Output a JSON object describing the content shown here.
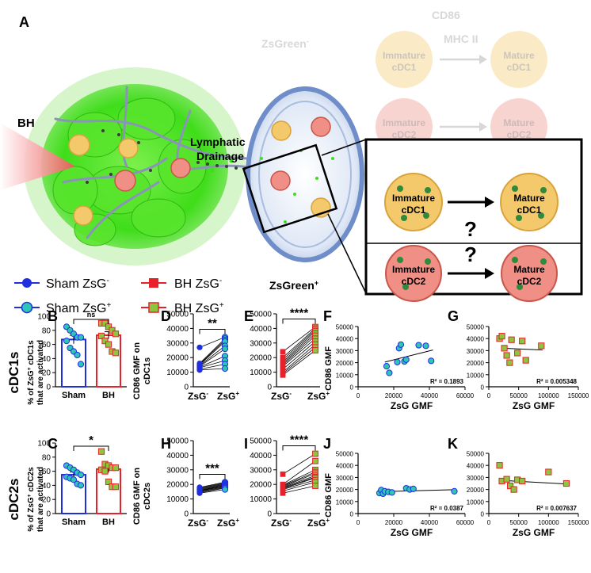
{
  "panel_labels": {
    "A": "A",
    "B": "B",
    "C": "C",
    "D": "D",
    "E": "E",
    "F": "F",
    "G": "G",
    "H": "H",
    "I": "I",
    "J": "J",
    "K": "K"
  },
  "schematic": {
    "bh": "BH",
    "lymphatic_1": "Lymphatic",
    "lymphatic_2": "Drainage",
    "cd86": "CD86",
    "mhc2": "MHC II",
    "zsgreen_neg": "ZsGreen",
    "zsgreen_pos": "ZsGreen",
    "neg_sup": "-",
    "pos_sup": "+",
    "immature": "Immature",
    "mature": "Mature",
    "cdc1": "cDC1",
    "cdc2": "cDC2",
    "question": "?"
  },
  "legend": {
    "sham_neg": "Sham ZsG",
    "sham_pos": "Sham ZsG",
    "bh_neg": "BH ZsG",
    "bh_pos": "BH ZsG",
    "neg_sup": "-",
    "pos_sup": "+"
  },
  "colors": {
    "sham_blue": "#1f2fe0",
    "sham_teal": "#2ec4b6",
    "bh_red": "#e8202a",
    "bh_green": "#8cc63f",
    "tumor_green": "#3fdd1a",
    "cdc1_yellow": "#f3c96b",
    "cdc2_pink": "#ef8f86",
    "node_blue": "#6f8ec9"
  },
  "row_labels": {
    "cdc1s": "cDC1s",
    "cdc2s": "cDC2s",
    "b_y1": "% of ZsG",
    "b_y1_sup": "+",
    "b_y1_tail": " cDC1s",
    "b_y2": "that are activated",
    "c_y1": "% of ZsG",
    "c_y1_sup": "+",
    "c_y1_tail": " cDC2s",
    "c_y2": "that are activated",
    "d_y1": "CD86 GMF on",
    "d_y2": "cDC1s",
    "h_y1": "CD86 GMF on",
    "h_y2": "cDC2s",
    "f_y": "CD86 GMF",
    "j_y": "CD86 GMF",
    "f_x": "ZsG GMF",
    "g_x": "ZsG GMF",
    "j_x": "ZsG GMF",
    "k_x": "ZsG GMF",
    "zsg": "ZsG",
    "minus": "-",
    "plus": "+"
  },
  "chart_data": [
    {
      "id": "B",
      "type": "bar",
      "categories": [
        "Sham",
        "BH"
      ],
      "ylim": [
        0,
        100
      ],
      "yticks": [
        0,
        20,
        40,
        60,
        80,
        100
      ],
      "series": [
        {
          "name": "Sham ZsG+",
          "mean": 67,
          "sem": 6,
          "points": [
            85,
            80,
            75,
            70,
            70,
            65,
            55,
            50,
            45,
            32
          ]
        },
        {
          "name": "BH ZsG+",
          "mean": 73,
          "sem": 5,
          "points": [
            90,
            90,
            85,
            80,
            75,
            72,
            65,
            60,
            50,
            48
          ]
        }
      ],
      "annotation": "ns"
    },
    {
      "id": "C",
      "type": "bar",
      "categories": [
        "Sham",
        "BH"
      ],
      "ylim": [
        0,
        100
      ],
      "yticks": [
        0,
        20,
        40,
        60,
        80,
        100
      ],
      "series": [
        {
          "name": "Sham ZsG+",
          "mean": 55,
          "sem": 4,
          "points": [
            68,
            65,
            62,
            58,
            55,
            52,
            50,
            48,
            42,
            40
          ]
        },
        {
          "name": "BH ZsG+",
          "mean": 63,
          "sem": 5,
          "points": [
            88,
            70,
            68,
            65,
            65,
            62,
            60,
            45,
            38,
            38
          ]
        }
      ],
      "annotation": "*"
    },
    {
      "id": "D",
      "type": "line",
      "ylim": [
        0,
        50000
      ],
      "yticks": [
        0,
        10000,
        20000,
        30000,
        40000,
        50000
      ],
      "pairs": [
        [
          27000,
          34000
        ],
        [
          16000,
          33000
        ],
        [
          15500,
          32000
        ],
        [
          15000,
          31000
        ],
        [
          14500,
          28000
        ],
        [
          14000,
          26000
        ],
        [
          13500,
          21000
        ],
        [
          13000,
          18000
        ],
        [
          12000,
          15500
        ],
        [
          11500,
          12500
        ]
      ],
      "annotation": "**"
    },
    {
      "id": "E",
      "type": "line",
      "ylim": [
        0,
        50000
      ],
      "yticks": [
        0,
        10000,
        20000,
        30000,
        40000,
        50000
      ],
      "pairs": [
        [
          24000,
          41000
        ],
        [
          20000,
          40000
        ],
        [
          18500,
          39000
        ],
        [
          17000,
          38000
        ],
        [
          16000,
          36500
        ],
        [
          15000,
          35000
        ],
        [
          14000,
          33000
        ],
        [
          12000,
          31000
        ],
        [
          10000,
          29000
        ],
        [
          9000,
          27000
        ],
        [
          8000,
          25000
        ]
      ],
      "annotation": "****"
    },
    {
      "id": "F",
      "type": "scatter",
      "xlim": [
        0,
        60000
      ],
      "xticks": [
        0,
        20000,
        40000,
        60000
      ],
      "ylim": [
        0,
        50000
      ],
      "yticks": [
        0,
        10000,
        20000,
        30000,
        40000,
        50000
      ],
      "x": [
        16000,
        17500,
        22000,
        23000,
        24000,
        26000,
        27000,
        34000,
        38000,
        41000
      ],
      "y": [
        17000,
        11500,
        20500,
        32000,
        35000,
        21000,
        22500,
        34500,
        34000,
        21500
      ],
      "fit": [
        [
          15000,
          20500
        ],
        [
          42000,
          30500
        ]
      ],
      "r2": "R² = 0.1893"
    },
    {
      "id": "G",
      "type": "scatter",
      "xlim": [
        0,
        150000
      ],
      "xticks": [
        0,
        50000,
        100000,
        150000
      ],
      "ylim": [
        0,
        50000
      ],
      "yticks": [
        0,
        10000,
        20000,
        30000,
        40000,
        50000
      ],
      "x": [
        18000,
        22000,
        26000,
        30000,
        35000,
        38000,
        48000,
        56000,
        62000,
        88000
      ],
      "y": [
        40000,
        42000,
        32000,
        26000,
        20000,
        39000,
        28000,
        38000,
        22000,
        34000
      ],
      "fit": [
        [
          22000,
          32000
        ],
        [
          90000,
          30500
        ]
      ],
      "r2": "R² = 0.005348"
    },
    {
      "id": "H",
      "type": "line",
      "ylim": [
        0,
        50000
      ],
      "yticks": [
        0,
        10000,
        20000,
        30000,
        40000,
        50000
      ],
      "pairs": [
        [
          18000,
          21500
        ],
        [
          17500,
          21000
        ],
        [
          17000,
          20500
        ],
        [
          16500,
          20000
        ],
        [
          16000,
          19500
        ],
        [
          15800,
          19000
        ],
        [
          15500,
          18500
        ],
        [
          15000,
          18000
        ],
        [
          14500,
          17500
        ],
        [
          14000,
          16500
        ]
      ],
      "annotation": "***"
    },
    {
      "id": "I",
      "type": "line",
      "ylim": [
        0,
        50000
      ],
      "yticks": [
        0,
        10000,
        20000,
        30000,
        40000,
        50000
      ],
      "pairs": [
        [
          27000,
          41000
        ],
        [
          20000,
          36000
        ],
        [
          19500,
          30000
        ],
        [
          19000,
          28500
        ],
        [
          18500,
          27500
        ],
        [
          18000,
          26000
        ],
        [
          17500,
          25000
        ],
        [
          17000,
          24500
        ],
        [
          16500,
          23000
        ],
        [
          15500,
          21500
        ],
        [
          14000,
          19000
        ]
      ],
      "annotation": "****"
    },
    {
      "id": "J",
      "type": "scatter",
      "xlim": [
        0,
        60000
      ],
      "xticks": [
        0,
        20000,
        40000,
        60000
      ],
      "ylim": [
        0,
        50000
      ],
      "yticks": [
        0,
        10000,
        20000,
        30000,
        40000,
        50000
      ],
      "x": [
        12000,
        13000,
        14000,
        15000,
        17000,
        19000,
        27000,
        29000,
        31000,
        54000
      ],
      "y": [
        17000,
        19500,
        16500,
        18500,
        18000,
        17500,
        21000,
        20000,
        20500,
        18500
      ],
      "fit": [
        [
          12000,
          18200
        ],
        [
          54000,
          19800
        ]
      ],
      "r2": "R² = 0.0387"
    },
    {
      "id": "K",
      "type": "scatter",
      "xlim": [
        0,
        150000
      ],
      "xticks": [
        0,
        50000,
        100000,
        150000
      ],
      "ylim": [
        0,
        50000
      ],
      "yticks": [
        0,
        10000,
        20000,
        30000,
        40000,
        50000
      ],
      "x": [
        18000,
        22000,
        30000,
        36000,
        42000,
        48000,
        56000,
        100000,
        130000
      ],
      "y": [
        40000,
        27000,
        28500,
        23000,
        20000,
        28000,
        27000,
        34500,
        25000
      ],
      "fit": [
        [
          22000,
          27500
        ],
        [
          132000,
          24500
        ]
      ],
      "r2": "R² = 0.007637"
    }
  ]
}
